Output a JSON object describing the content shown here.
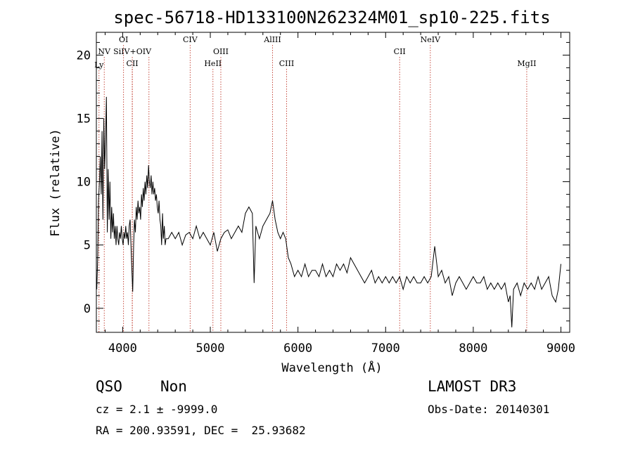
{
  "chart_data": {
    "type": "line",
    "title": "spec-56718-HD133100N262324M01_sp10-225.fits",
    "xlabel": "Wavelength (Å)",
    "ylabel": "Flux (relative)",
    "xlim": [
      3700,
      9100
    ],
    "ylim": [
      -1.9,
      21.8
    ],
    "xticks": [
      "4000",
      "5000",
      "6000",
      "7000",
      "8000",
      "9000"
    ],
    "xtick_values": [
      4000,
      5000,
      6000,
      7000,
      8000,
      9000
    ],
    "yticks": [
      "0",
      "5",
      "10",
      "15",
      "20"
    ],
    "ytick_values": [
      0,
      5,
      10,
      15,
      20
    ],
    "line_color": "#000000",
    "marker_color": "#c0392b",
    "lines": [
      {
        "label": "Ly",
        "x": 3730,
        "row": 3
      },
      {
        "label": "NV",
        "x": 3790,
        "row": 1
      },
      {
        "label": "OI",
        "x": 4010,
        "row": 0
      },
      {
        "label": "SiIV+OIV",
        "x": 4110,
        "row": 1
      },
      {
        "label": "CII",
        "x": 4110,
        "row": 2
      },
      {
        "label": "CIV",
        "x": 4770,
        "row": 0
      },
      {
        "label": "OIII",
        "x": 5120,
        "row": 1
      },
      {
        "label": "HeII",
        "x": 5030,
        "row": 2
      },
      {
        "label": "AlIII",
        "x": 5710,
        "row": 0
      },
      {
        "label": "CIII",
        "x": 5870,
        "row": 2
      },
      {
        "label": "CII",
        "x": 7160,
        "row": 1
      },
      {
        "label": "NeIV",
        "x": 7510,
        "row": 0
      },
      {
        "label": "MgII",
        "x": 8610,
        "row": 2
      }
    ],
    "extra_markers": [
      4300
    ],
    "spectrum": [
      [
        3705,
        1.5
      ],
      [
        3715,
        4.0
      ],
      [
        3725,
        8.5
      ],
      [
        3735,
        10.0
      ],
      [
        3745,
        12.0
      ],
      [
        3755,
        9.0
      ],
      [
        3765,
        14.0
      ],
      [
        3775,
        7.0
      ],
      [
        3785,
        15.0
      ],
      [
        3795,
        11.0
      ],
      [
        3805,
        13.5
      ],
      [
        3815,
        16.7
      ],
      [
        3825,
        6.0
      ],
      [
        3835,
        11.0
      ],
      [
        3845,
        7.0
      ],
      [
        3855,
        10.0
      ],
      [
        3865,
        5.5
      ],
      [
        3875,
        8.0
      ],
      [
        3885,
        6.0
      ],
      [
        3895,
        7.5
      ],
      [
        3905,
        5.5
      ],
      [
        3915,
        6.5
      ],
      [
        3925,
        5.0
      ],
      [
        3935,
        6.5
      ],
      [
        3945,
        5.5
      ],
      [
        3955,
        5.0
      ],
      [
        3965,
        6.0
      ],
      [
        3975,
        5.5
      ],
      [
        3985,
        6.5
      ],
      [
        3995,
        5.5
      ],
      [
        4005,
        5.0
      ],
      [
        4015,
        6.0
      ],
      [
        4025,
        5.5
      ],
      [
        4035,
        6.5
      ],
      [
        4045,
        5.5
      ],
      [
        4055,
        6.0
      ],
      [
        4065,
        5.0
      ],
      [
        4075,
        6.5
      ],
      [
        4085,
        7.0
      ],
      [
        4095,
        5.0
      ],
      [
        4105,
        3.0
      ],
      [
        4115,
        1.3
      ],
      [
        4125,
        5.0
      ],
      [
        4135,
        7.0
      ],
      [
        4145,
        6.0
      ],
      [
        4155,
        8.0
      ],
      [
        4165,
        7.0
      ],
      [
        4175,
        8.5
      ],
      [
        4185,
        7.5
      ],
      [
        4195,
        8.0
      ],
      [
        4205,
        7.0
      ],
      [
        4215,
        9.0
      ],
      [
        4225,
        8.0
      ],
      [
        4235,
        9.5
      ],
      [
        4245,
        8.5
      ],
      [
        4255,
        10.0
      ],
      [
        4265,
        9.0
      ],
      [
        4275,
        10.5
      ],
      [
        4285,
        9.5
      ],
      [
        4295,
        11.3
      ],
      [
        4305,
        10.0
      ],
      [
        4315,
        9.5
      ],
      [
        4325,
        10.5
      ],
      [
        4335,
        9.0
      ],
      [
        4345,
        10.0
      ],
      [
        4355,
        9.0
      ],
      [
        4365,
        9.5
      ],
      [
        4375,
        8.5
      ],
      [
        4385,
        9.0
      ],
      [
        4395,
        8.0
      ],
      [
        4405,
        7.5
      ],
      [
        4415,
        8.5
      ],
      [
        4425,
        7.0
      ],
      [
        4435,
        6.5
      ],
      [
        4445,
        5.0
      ],
      [
        4455,
        7.5
      ],
      [
        4465,
        5.5
      ],
      [
        4475,
        6.5
      ],
      [
        4485,
        5.0
      ],
      [
        4495,
        5.5
      ],
      [
        4520,
        5.5
      ],
      [
        4560,
        6.0
      ],
      [
        4600,
        5.5
      ],
      [
        4640,
        6.0
      ],
      [
        4680,
        5.0
      ],
      [
        4720,
        5.8
      ],
      [
        4760,
        6.0
      ],
      [
        4800,
        5.5
      ],
      [
        4840,
        6.5
      ],
      [
        4880,
        5.5
      ],
      [
        4920,
        6.0
      ],
      [
        4960,
        5.5
      ],
      [
        5000,
        5.0
      ],
      [
        5040,
        6.0
      ],
      [
        5080,
        4.5
      ],
      [
        5120,
        5.5
      ],
      [
        5160,
        6.0
      ],
      [
        5200,
        6.2
      ],
      [
        5240,
        5.5
      ],
      [
        5280,
        6.0
      ],
      [
        5320,
        6.5
      ],
      [
        5360,
        6.0
      ],
      [
        5400,
        7.5
      ],
      [
        5440,
        8.0
      ],
      [
        5480,
        7.5
      ],
      [
        5500,
        2.0
      ],
      [
        5520,
        6.5
      ],
      [
        5560,
        5.5
      ],
      [
        5600,
        6.5
      ],
      [
        5640,
        7.0
      ],
      [
        5680,
        7.5
      ],
      [
        5710,
        8.5
      ],
      [
        5740,
        7.0
      ],
      [
        5770,
        6.0
      ],
      [
        5800,
        5.5
      ],
      [
        5830,
        6.0
      ],
      [
        5860,
        5.5
      ],
      [
        5890,
        4.0
      ],
      [
        5920,
        3.5
      ],
      [
        5960,
        2.5
      ],
      [
        6000,
        3.0
      ],
      [
        6040,
        2.5
      ],
      [
        6080,
        3.5
      ],
      [
        6120,
        2.5
      ],
      [
        6160,
        3.0
      ],
      [
        6200,
        3.0
      ],
      [
        6240,
        2.5
      ],
      [
        6280,
        3.5
      ],
      [
        6320,
        2.5
      ],
      [
        6360,
        3.0
      ],
      [
        6400,
        2.5
      ],
      [
        6440,
        3.5
      ],
      [
        6480,
        3.0
      ],
      [
        6520,
        3.5
      ],
      [
        6560,
        2.8
      ],
      [
        6600,
        4.0
      ],
      [
        6640,
        3.5
      ],
      [
        6680,
        3.0
      ],
      [
        6720,
        2.5
      ],
      [
        6760,
        2.0
      ],
      [
        6800,
        2.5
      ],
      [
        6840,
        3.0
      ],
      [
        6880,
        2.0
      ],
      [
        6920,
        2.5
      ],
      [
        6960,
        2.0
      ],
      [
        7000,
        2.5
      ],
      [
        7040,
        2.0
      ],
      [
        7080,
        2.5
      ],
      [
        7120,
        2.0
      ],
      [
        7160,
        2.5
      ],
      [
        7200,
        1.5
      ],
      [
        7240,
        2.5
      ],
      [
        7280,
        2.0
      ],
      [
        7320,
        2.5
      ],
      [
        7360,
        2.0
      ],
      [
        7400,
        2.0
      ],
      [
        7440,
        2.5
      ],
      [
        7480,
        2.0
      ],
      [
        7520,
        2.5
      ],
      [
        7560,
        4.9
      ],
      [
        7600,
        2.5
      ],
      [
        7640,
        3.0
      ],
      [
        7680,
        2.0
      ],
      [
        7720,
        2.5
      ],
      [
        7760,
        1.0
      ],
      [
        7800,
        2.0
      ],
      [
        7840,
        2.5
      ],
      [
        7880,
        2.0
      ],
      [
        7920,
        1.5
      ],
      [
        7960,
        2.0
      ],
      [
        8000,
        2.5
      ],
      [
        8040,
        2.0
      ],
      [
        8080,
        2.0
      ],
      [
        8120,
        2.5
      ],
      [
        8160,
        1.5
      ],
      [
        8200,
        2.0
      ],
      [
        8240,
        1.5
      ],
      [
        8280,
        2.0
      ],
      [
        8320,
        1.5
      ],
      [
        8360,
        2.0
      ],
      [
        8400,
        0.5
      ],
      [
        8420,
        1.0
      ],
      [
        8440,
        -1.5
      ],
      [
        8460,
        1.5
      ],
      [
        8500,
        2.0
      ],
      [
        8540,
        1.0
      ],
      [
        8580,
        2.0
      ],
      [
        8620,
        1.5
      ],
      [
        8660,
        2.0
      ],
      [
        8700,
        1.5
      ],
      [
        8740,
        2.5
      ],
      [
        8780,
        1.5
      ],
      [
        8820,
        2.0
      ],
      [
        8860,
        2.5
      ],
      [
        8900,
        1.0
      ],
      [
        8940,
        0.5
      ],
      [
        8970,
        1.5
      ],
      [
        9000,
        3.5
      ]
    ]
  },
  "info": {
    "class": "QSO",
    "subclass": "Non",
    "survey": "LAMOST DR3",
    "cz": "cz = 2.1 ± -9999.0",
    "obs_date": "Obs-Date: 20140301",
    "coords": "RA = 200.93591, DEC =  25.93682"
  }
}
